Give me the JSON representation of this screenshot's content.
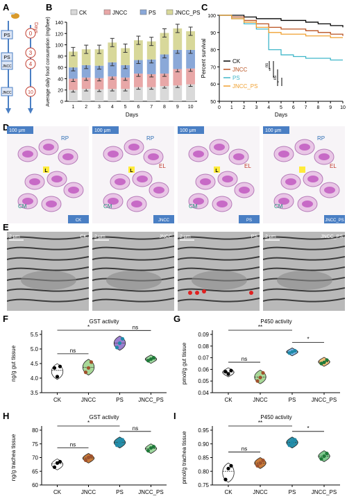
{
  "panel_labels": [
    "A",
    "B",
    "C",
    "D",
    "E",
    "F",
    "G",
    "H",
    "I"
  ],
  "groups": [
    "CK",
    "JNCC",
    "PS",
    "JNCC_PS"
  ],
  "colors": {
    "CK": "#d9d9d9",
    "JNCC": "#e8a7a7",
    "PS": "#8aa8d8",
    "JNCC_PS": "#d8d89a",
    "ck_line": "#000000",
    "jncc_line": "#b8501f",
    "ps_line": "#3fb6c9",
    "jnccps_line": "#f0a030",
    "violin_ck": "#ffffff",
    "violin_jncc": "#a8d898",
    "violin_ps": "#9b7fcf",
    "violin_jnccps": "#9fd89f",
    "violin_g_ps": "#7fb8e8",
    "violin_g_jnccps": "#f2c07a"
  },
  "panelA": {
    "days_label": "Days",
    "nodes": [
      "0",
      "3",
      "4",
      "10"
    ],
    "tags": [
      "PS",
      "PS",
      "JNCC",
      "JNCC"
    ]
  },
  "chart_data": [
    {
      "id": "B",
      "type": "bar",
      "xlabel": "Days",
      "ylabel": "Average daily food consumption (mg/bee)",
      "categories": [
        "1",
        "2",
        "3",
        "4",
        "5",
        "6",
        "7",
        "8",
        "9",
        "10"
      ],
      "ylim": [
        0,
        140
      ],
      "yticks": [
        "0",
        "20",
        "40",
        "60",
        "80",
        "100",
        "120",
        "140"
      ],
      "series": [
        {
          "name": "CK",
          "values": [
            20,
            22,
            21,
            22,
            22,
            25,
            25,
            27,
            28,
            30
          ]
        },
        {
          "name": "JNCC",
          "values": [
            20,
            20,
            20,
            22,
            20,
            24,
            23,
            22,
            29,
            28
          ]
        },
        {
          "name": "PS",
          "values": [
            20,
            22,
            22,
            25,
            22,
            24,
            26,
            34,
            34,
            33
          ]
        },
        {
          "name": "JNCC_PS",
          "values": [
            28,
            28,
            29,
            35,
            30,
            35,
            32,
            38,
            38,
            33
          ]
        }
      ],
      "legend": "top"
    },
    {
      "id": "C",
      "type": "line",
      "xlabel": "Days",
      "ylabel": "Percent survival",
      "xlim": [
        0,
        10
      ],
      "ylim": [
        50,
        100
      ],
      "xticks": [
        "0",
        "1",
        "2",
        "3",
        "4",
        "5",
        "6",
        "7",
        "8",
        "9",
        "10"
      ],
      "yticks": [
        "50",
        "60",
        "70",
        "80",
        "90",
        "100"
      ],
      "series": [
        {
          "name": "CK",
          "x": [
            0,
            1,
            2,
            3,
            4,
            5,
            6,
            7,
            8,
            9,
            10
          ],
          "y": [
            100,
            100,
            99,
            98,
            98,
            97,
            97,
            96,
            95,
            94,
            93
          ]
        },
        {
          "name": "JNCC",
          "x": [
            0,
            1,
            2,
            3,
            4,
            5,
            6,
            7,
            8,
            9,
            10
          ],
          "y": [
            100,
            99,
            97,
            95,
            93,
            92,
            92,
            91,
            90,
            89,
            88
          ]
        },
        {
          "name": "PS",
          "x": [
            0,
            1,
            2,
            3,
            4,
            5,
            6,
            7,
            8,
            9,
            10
          ],
          "y": [
            100,
            98,
            95,
            92,
            80,
            77,
            76,
            75,
            75,
            74,
            74
          ]
        },
        {
          "name": "JNCC_PS",
          "x": [
            0,
            1,
            2,
            3,
            4,
            5,
            6,
            7,
            8,
            9,
            10
          ],
          "y": [
            100,
            98,
            96,
            93,
            90,
            89,
            89,
            88,
            88,
            87,
            87
          ]
        }
      ],
      "annotations": [
        "ns",
        "**",
        "ns",
        "*"
      ]
    },
    {
      "id": "F",
      "type": "scatter",
      "title": "GST activity",
      "ylabel": "ng/g gut tissue",
      "categories": [
        "CK",
        "JNCC",
        "PS",
        "JNCC_PS"
      ],
      "ylim": [
        3.5,
        5.5
      ],
      "yticks": [
        "3.5",
        "4.0",
        "4.5",
        "5.0",
        "5.5"
      ],
      "points": [
        [
          4.35,
          4.05,
          4.4
        ],
        [
          4.2,
          4.35,
          4.55
        ],
        [
          5.05,
          5.2,
          5.35
        ],
        [
          4.6,
          4.65,
          4.7
        ]
      ],
      "brackets": [
        {
          "from": 0,
          "to": 2,
          "label": "*"
        },
        {
          "from": 0,
          "to": 1,
          "label": "ns"
        },
        {
          "from": 2,
          "to": 3,
          "label": "ns"
        }
      ]
    },
    {
      "id": "G",
      "type": "scatter",
      "title": "P450 activity",
      "ylabel": "pmol/g gut tissue",
      "categories": [
        "CK",
        "JNCC",
        "PS",
        "JNCC_PS"
      ],
      "ylim": [
        0.04,
        0.09
      ],
      "yticks": [
        "0.04",
        "0.05",
        "0.06",
        "0.07",
        "0.08",
        "0.09"
      ],
      "points": [
        [
          0.058,
          0.056,
          0.059
        ],
        [
          0.05,
          0.053,
          0.057
        ],
        [
          0.074,
          0.075,
          0.076
        ],
        [
          0.065,
          0.066,
          0.068
        ]
      ],
      "brackets": [
        {
          "from": 0,
          "to": 2,
          "label": "**"
        },
        {
          "from": 0,
          "to": 1,
          "label": "ns"
        },
        {
          "from": 2,
          "to": 3,
          "label": "*"
        }
      ]
    },
    {
      "id": "H",
      "type": "scatter",
      "title": "GST activity",
      "ylabel": "ng/g trachea tissue",
      "categories": [
        "CK",
        "JNCC",
        "PS",
        "JNCC_PS"
      ],
      "ylim": [
        60,
        80
      ],
      "yticks": [
        "60",
        "65",
        "70",
        "75",
        "80"
      ],
      "points": [
        [
          66.5,
          68,
          68.5
        ],
        [
          69,
          70,
          70.5
        ],
        [
          74.5,
          75.5,
          76.5
        ],
        [
          72.5,
          73.5,
          74
        ]
      ],
      "brackets": [
        {
          "from": 0,
          "to": 2,
          "label": "*"
        },
        {
          "from": 0,
          "to": 1,
          "label": "ns"
        },
        {
          "from": 2,
          "to": 3,
          "label": "ns"
        }
      ]
    },
    {
      "id": "I",
      "type": "scatter",
      "title": "P450 activity",
      "ylabel": "pmol/g trachea tissue",
      "categories": [
        "CK",
        "JNCC",
        "PS",
        "JNCC_PS"
      ],
      "ylim": [
        0.75,
        0.95
      ],
      "yticks": [
        "0.75",
        "0.80",
        "0.85",
        "0.90",
        "0.95"
      ],
      "points": [
        [
          0.77,
          0.81,
          0.82
        ],
        [
          0.82,
          0.83,
          0.84
        ],
        [
          0.895,
          0.905,
          0.915
        ],
        [
          0.845,
          0.855,
          0.865
        ]
      ],
      "brackets": [
        {
          "from": 0,
          "to": 2,
          "label": "**"
        },
        {
          "from": 0,
          "to": 1,
          "label": "ns"
        },
        {
          "from": 2,
          "to": 3,
          "label": "*"
        }
      ]
    }
  ],
  "panelD": {
    "scale": "100 μm",
    "tiles": [
      {
        "group": "CK",
        "labels": [
          "L",
          "RP",
          "CM"
        ]
      },
      {
        "group": "JNCC",
        "labels": [
          "L",
          "EL",
          "CM",
          "RP"
        ]
      },
      {
        "group": "PS",
        "labels": [
          "L",
          "EL",
          "CM"
        ]
      },
      {
        "group": "JNCC_PS",
        "labels": [
          "CM",
          "RP",
          "EL"
        ]
      }
    ]
  },
  "panelE": {
    "scale": "2 μm",
    "tiles": [
      {
        "group": "CK"
      },
      {
        "group": "JNCC"
      },
      {
        "group": "PS"
      },
      {
        "group": "JNCC_PS"
      }
    ]
  }
}
